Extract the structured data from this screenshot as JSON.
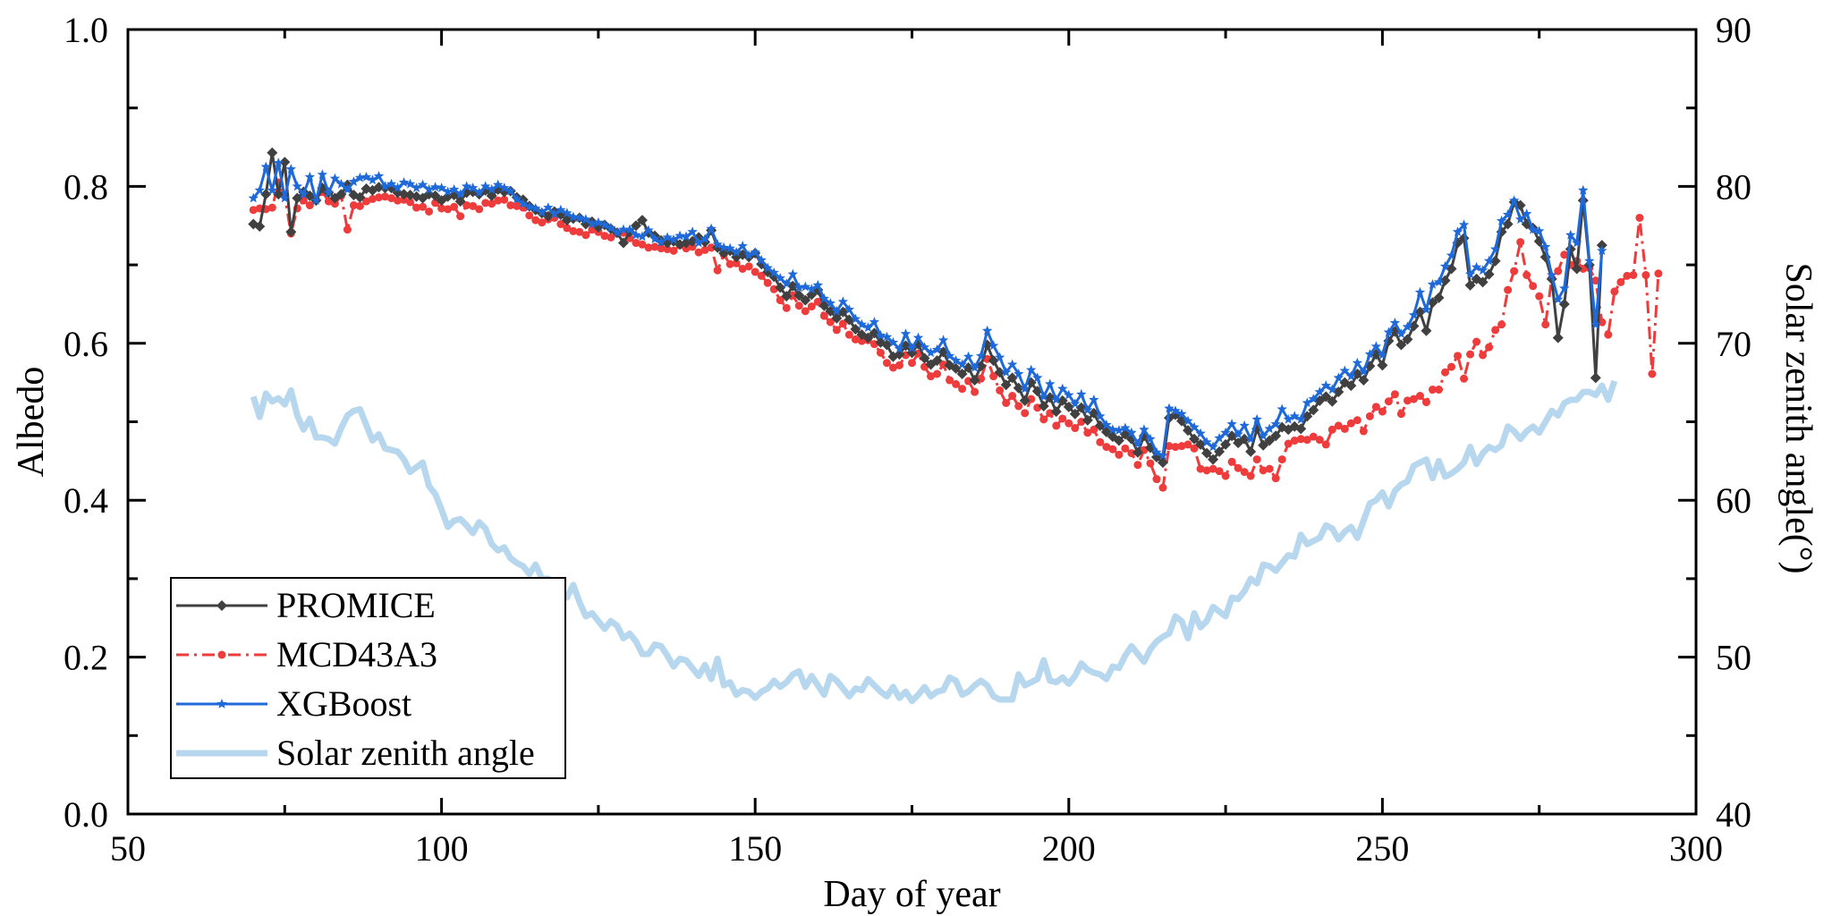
{
  "chart_data": {
    "type": "line",
    "title": "",
    "xlabel": "Day of year",
    "ylabel": "Albedo",
    "y2label": "Solar zenith angle(°)",
    "xlim": [
      50,
      300
    ],
    "ylim": [
      0.0,
      1.0
    ],
    "y2lim": [
      40,
      90
    ],
    "x_ticks": [
      50,
      100,
      150,
      200,
      250,
      300
    ],
    "x_tick_labels": [
      "50",
      "100",
      "150",
      "200",
      "250",
      "300"
    ],
    "y_ticks": [
      0.0,
      0.2,
      0.4,
      0.6,
      0.8,
      1.0
    ],
    "y_tick_labels": [
      "0.0",
      "0.2",
      "0.4",
      "0.6",
      "0.8",
      "1.0"
    ],
    "y2_ticks": [
      40,
      50,
      60,
      70,
      80,
      90
    ],
    "y2_tick_labels": [
      "40",
      "50",
      "60",
      "70",
      "80",
      "90"
    ],
    "grid": false,
    "legend_position": "bottom-left",
    "x_start": 70,
    "x_end": 280,
    "series": [
      {
        "name": "PROMICE",
        "axis": "left",
        "color": "#404040",
        "marker": "diamond",
        "linestyle": "solid",
        "values": [
          0.752,
          0.749,
          0.79,
          0.843,
          0.79,
          0.831,
          0.742,
          0.785,
          0.793,
          0.788,
          0.782,
          0.798,
          0.792,
          0.785,
          0.79,
          0.802,
          0.789,
          0.786,
          0.797,
          0.795,
          0.799,
          0.798,
          0.798,
          0.792,
          0.79,
          0.789,
          0.787,
          0.785,
          0.79,
          0.788,
          0.782,
          0.787,
          0.789,
          0.781,
          0.792,
          0.793,
          0.79,
          0.795,
          0.788,
          0.796,
          0.793,
          0.794,
          0.786,
          0.783,
          0.775,
          0.77,
          0.766,
          0.762,
          0.768,
          0.764,
          0.757,
          0.759,
          0.76,
          0.752,
          0.755,
          0.748,
          0.751,
          0.746,
          0.741,
          0.728,
          0.742,
          0.75,
          0.757,
          0.741,
          0.737,
          0.731,
          0.728,
          0.73,
          0.726,
          0.728,
          0.73,
          0.735,
          0.729,
          0.744,
          0.722,
          0.715,
          0.718,
          0.71,
          0.713,
          0.71,
          0.715,
          0.701,
          0.691,
          0.685,
          0.671,
          0.66,
          0.673,
          0.661,
          0.655,
          0.662,
          0.668,
          0.648,
          0.641,
          0.632,
          0.64,
          0.63,
          0.618,
          0.611,
          0.607,
          0.613,
          0.601,
          0.598,
          0.583,
          0.586,
          0.597,
          0.588,
          0.599,
          0.581,
          0.573,
          0.578,
          0.589,
          0.572,
          0.568,
          0.561,
          0.569,
          0.553,
          0.571,
          0.598,
          0.578,
          0.563,
          0.547,
          0.556,
          0.543,
          0.527,
          0.55,
          0.539,
          0.52,
          0.531,
          0.513,
          0.527,
          0.519,
          0.51,
          0.518,
          0.502,
          0.511,
          0.495,
          0.487,
          0.481,
          0.476,
          0.484,
          0.478,
          0.461,
          0.482,
          0.467,
          0.455,
          0.448,
          0.505,
          0.509,
          0.501,
          0.489,
          0.478,
          0.471,
          0.46,
          0.452,
          0.462,
          0.471,
          0.482,
          0.473,
          0.478,
          0.462,
          0.491,
          0.47,
          0.476,
          0.482,
          0.493,
          0.49,
          0.494,
          0.491,
          0.507,
          0.515,
          0.527,
          0.532,
          0.526,
          0.538,
          0.55,
          0.546,
          0.561,
          0.553,
          0.571,
          0.586,
          0.572,
          0.603,
          0.615,
          0.598,
          0.605,
          0.622,
          0.64,
          0.616,
          0.652,
          0.658,
          0.68,
          0.695,
          0.728,
          0.734,
          0.674,
          0.682,
          0.678,
          0.688,
          0.705,
          0.742,
          0.752,
          0.78,
          0.776,
          0.752,
          0.747,
          0.73,
          0.71,
          0.682,
          0.607,
          0.65,
          0.72,
          0.695,
          0.782,
          0.7,
          0.556,
          0.725
        ]
      },
      {
        "name": "MCD43A3",
        "axis": "left",
        "color": "#EE3B3B",
        "marker": "circle",
        "linestyle": "dashdot",
        "values": [
          0.77,
          0.772,
          0.771,
          0.773,
          0.805,
          0.788,
          0.74,
          0.772,
          0.782,
          0.776,
          0.783,
          0.793,
          0.781,
          0.778,
          0.788,
          0.745,
          0.776,
          0.775,
          0.781,
          0.784,
          0.786,
          0.787,
          0.785,
          0.782,
          0.783,
          0.78,
          0.773,
          0.774,
          0.768,
          0.779,
          0.772,
          0.771,
          0.774,
          0.762,
          0.776,
          0.775,
          0.771,
          0.779,
          0.778,
          0.782,
          0.783,
          0.776,
          0.775,
          0.773,
          0.763,
          0.757,
          0.754,
          0.758,
          0.76,
          0.752,
          0.747,
          0.743,
          0.742,
          0.738,
          0.745,
          0.742,
          0.737,
          0.735,
          0.74,
          0.741,
          0.734,
          0.728,
          0.726,
          0.722,
          0.723,
          0.721,
          0.72,
          0.718,
          0.725,
          0.721,
          0.723,
          0.716,
          0.719,
          0.722,
          0.693,
          0.713,
          0.701,
          0.702,
          0.695,
          0.698,
          0.691,
          0.686,
          0.677,
          0.669,
          0.655,
          0.645,
          0.661,
          0.648,
          0.641,
          0.647,
          0.653,
          0.635,
          0.627,
          0.617,
          0.625,
          0.611,
          0.605,
          0.603,
          0.604,
          0.599,
          0.588,
          0.575,
          0.569,
          0.572,
          0.585,
          0.575,
          0.587,
          0.57,
          0.558,
          0.561,
          0.573,
          0.553,
          0.548,
          0.542,
          0.552,
          0.538,
          0.555,
          0.58,
          0.558,
          0.54,
          0.524,
          0.533,
          0.52,
          0.511,
          0.529,
          0.518,
          0.503,
          0.511,
          0.495,
          0.504,
          0.498,
          0.492,
          0.5,
          0.486,
          0.49,
          0.474,
          0.468,
          0.465,
          0.458,
          0.466,
          0.46,
          0.445,
          0.464,
          0.447,
          0.427,
          0.416,
          0.469,
          0.468,
          0.469,
          0.471,
          0.466,
          0.44,
          0.438,
          0.44,
          0.437,
          0.431,
          0.449,
          0.441,
          0.436,
          0.431,
          0.452,
          0.438,
          0.44,
          0.428,
          0.452,
          0.472,
          0.476,
          0.478,
          0.477,
          0.481,
          0.477,
          0.471,
          0.49,
          0.495,
          0.491,
          0.498,
          0.502,
          0.488,
          0.507,
          0.519,
          0.513,
          0.526,
          0.535,
          0.51,
          0.527,
          0.529,
          0.533,
          0.525,
          0.541,
          0.541,
          0.563,
          0.57,
          0.584,
          0.555,
          0.586,
          0.602,
          0.585,
          0.595,
          0.617,
          0.624,
          0.668,
          0.692,
          0.729,
          0.687,
          0.673,
          0.66,
          0.624,
          0.683,
          0.692,
          0.713,
          0.7,
          0.705,
          0.695,
          0.696,
          0.68,
          0.627,
          0.611,
          0.666,
          0.678,
          0.686,
          0.687,
          0.76,
          0.687,
          0.561,
          0.689
        ]
      },
      {
        "name": "XGBoost",
        "axis": "left",
        "color": "#1F6AD8",
        "marker": "star",
        "linestyle": "solid",
        "values": [
          0.785,
          0.795,
          0.825,
          0.795,
          0.83,
          0.785,
          0.822,
          0.8,
          0.79,
          0.812,
          0.782,
          0.815,
          0.792,
          0.81,
          0.803,
          0.796,
          0.806,
          0.811,
          0.812,
          0.808,
          0.813,
          0.8,
          0.803,
          0.798,
          0.805,
          0.803,
          0.798,
          0.802,
          0.796,
          0.799,
          0.798,
          0.793,
          0.796,
          0.79,
          0.8,
          0.798,
          0.792,
          0.8,
          0.796,
          0.802,
          0.798,
          0.794,
          0.784,
          0.778,
          0.774,
          0.772,
          0.767,
          0.773,
          0.765,
          0.77,
          0.766,
          0.761,
          0.76,
          0.758,
          0.752,
          0.754,
          0.751,
          0.747,
          0.741,
          0.745,
          0.745,
          0.738,
          0.736,
          0.744,
          0.733,
          0.729,
          0.735,
          0.732,
          0.737,
          0.736,
          0.742,
          0.728,
          0.733,
          0.746,
          0.726,
          0.722,
          0.721,
          0.716,
          0.724,
          0.712,
          0.716,
          0.706,
          0.696,
          0.69,
          0.683,
          0.676,
          0.688,
          0.671,
          0.672,
          0.669,
          0.674,
          0.657,
          0.651,
          0.641,
          0.653,
          0.643,
          0.631,
          0.624,
          0.62,
          0.627,
          0.61,
          0.608,
          0.601,
          0.593,
          0.612,
          0.594,
          0.607,
          0.595,
          0.588,
          0.592,
          0.604,
          0.584,
          0.578,
          0.573,
          0.583,
          0.569,
          0.584,
          0.616,
          0.597,
          0.582,
          0.563,
          0.573,
          0.561,
          0.542,
          0.566,
          0.556,
          0.532,
          0.548,
          0.528,
          0.542,
          0.534,
          0.523,
          0.535,
          0.515,
          0.528,
          0.507,
          0.496,
          0.49,
          0.489,
          0.492,
          0.486,
          0.472,
          0.49,
          0.478,
          0.461,
          0.457,
          0.517,
          0.514,
          0.51,
          0.501,
          0.493,
          0.485,
          0.474,
          0.468,
          0.479,
          0.486,
          0.497,
          0.484,
          0.495,
          0.478,
          0.503,
          0.482,
          0.491,
          0.497,
          0.516,
          0.503,
          0.507,
          0.503,
          0.524,
          0.529,
          0.538,
          0.546,
          0.541,
          0.556,
          0.565,
          0.558,
          0.575,
          0.564,
          0.586,
          0.596,
          0.585,
          0.614,
          0.626,
          0.612,
          0.621,
          0.636,
          0.665,
          0.643,
          0.675,
          0.678,
          0.698,
          0.712,
          0.742,
          0.751,
          0.688,
          0.697,
          0.693,
          0.705,
          0.72,
          0.756,
          0.764,
          0.782,
          0.758,
          0.765,
          0.745,
          0.743,
          0.723,
          0.687,
          0.656,
          0.67,
          0.738,
          0.728,
          0.795,
          0.705,
          0.624,
          0.718
        ]
      },
      {
        "name": "Solar zenith angle",
        "axis": "right",
        "color": "#B7D7EE",
        "marker": "none",
        "linestyle": "solid",
        "values": [
          66.6,
          65.3,
          66.8,
          66.3,
          66.5,
          66.1,
          67.0,
          65.4,
          64.5,
          65.2,
          64.0,
          64.0,
          63.9,
          63.6,
          64.6,
          65.4,
          65.7,
          65.8,
          64.8,
          63.8,
          64.2,
          63.3,
          63.2,
          63.1,
          62.6,
          61.8,
          62.1,
          62.4,
          60.9,
          60.4,
          59.4,
          58.3,
          58.7,
          58.8,
          58.4,
          57.9,
          58.6,
          58.2,
          57.2,
          56.8,
          57.0,
          56.3,
          56.0,
          55.8,
          55.3,
          55.9,
          55.0,
          55.0,
          54.6,
          54.0,
          53.8,
          54.6,
          53.5,
          52.6,
          52.8,
          52.3,
          51.8,
          52.3,
          52.0,
          51.2,
          51.5,
          51.0,
          50.2,
          50.2,
          50.8,
          50.7,
          50.1,
          49.4,
          49.9,
          49.8,
          49.3,
          48.8,
          49.5,
          48.6,
          49.9,
          48.2,
          48.4,
          47.6,
          47.9,
          47.8,
          47.4,
          47.8,
          48.0,
          48.5,
          48.1,
          48.4,
          48.9,
          49.1,
          48.1,
          48.8,
          48.2,
          47.6,
          48.8,
          48.5,
          48.0,
          47.5,
          48.0,
          47.9,
          48.6,
          48.2,
          47.8,
          47.5,
          48.1,
          47.4,
          47.8,
          47.2,
          47.6,
          48.1,
          47.5,
          47.8,
          47.9,
          48.7,
          48.5,
          47.6,
          47.8,
          48.2,
          48.5,
          48.2,
          47.5,
          47.3,
          47.3,
          47.3,
          48.9,
          48.2,
          48.4,
          48.6,
          49.8,
          48.5,
          48.4,
          48.7,
          48.3,
          48.8,
          49.6,
          49.2,
          49.0,
          48.9,
          48.6,
          49.4,
          49.3,
          50.1,
          50.7,
          50.2,
          49.7,
          50.5,
          51.0,
          51.3,
          51.5,
          52.6,
          52.3,
          51.2,
          52.8,
          51.9,
          52.3,
          53.2,
          52.9,
          52.6,
          53.8,
          53.7,
          54.2,
          55.0,
          54.7,
          55.9,
          55.8,
          55.5,
          56.0,
          56.5,
          56.4,
          57.8,
          57.2,
          57.4,
          57.6,
          58.4,
          58.2,
          57.5,
          58.0,
          58.3,
          57.6,
          58.7,
          59.8,
          60.0,
          60.5,
          59.6,
          60.6,
          61.0,
          61.2,
          62.2,
          62.4,
          62.6,
          61.4,
          62.5,
          61.5,
          61.7,
          62.0,
          62.4,
          63.4,
          62.3,
          63.0,
          63.4,
          63.2,
          63.5,
          64.7,
          64.4,
          63.9,
          64.4,
          64.7,
          64.3,
          65.0,
          65.7,
          65.4,
          66.2,
          66.4,
          66.4,
          66.9,
          66.9,
          66.7,
          67.3,
          66.4,
          67.6
        ]
      }
    ]
  }
}
